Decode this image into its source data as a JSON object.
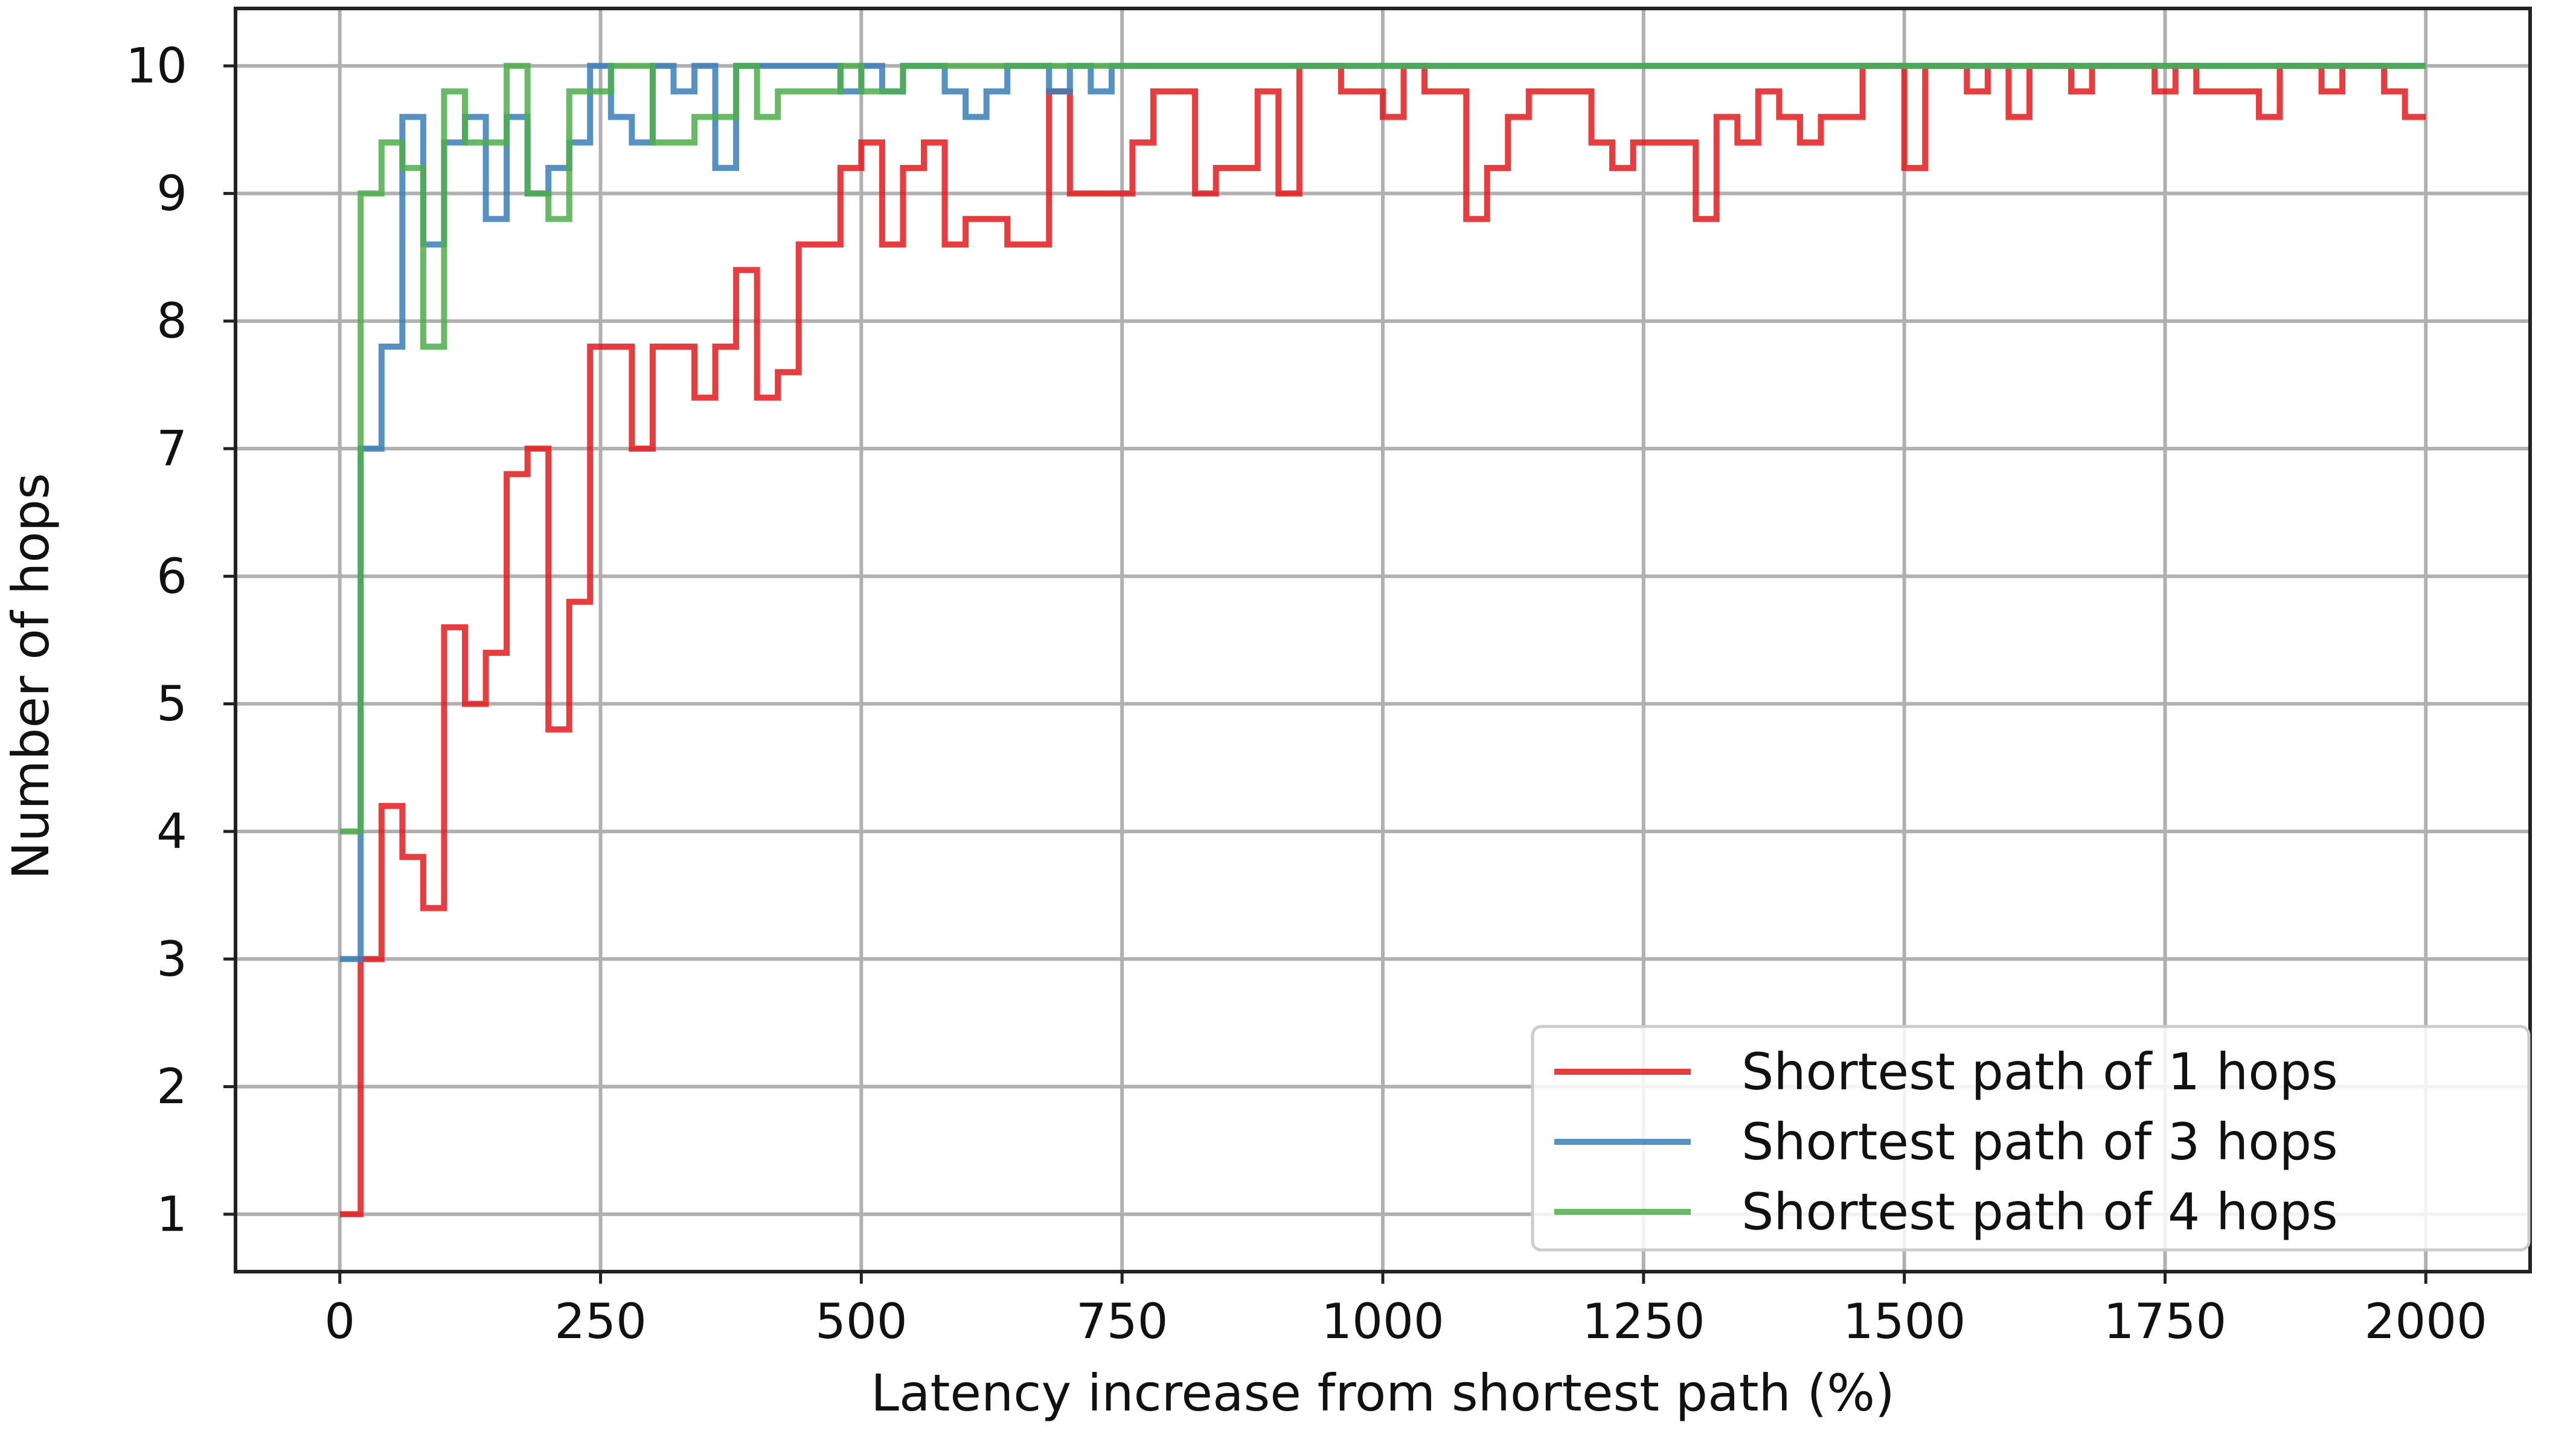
{
  "chart_data": {
    "type": "line",
    "step": "post",
    "title": "",
    "xlabel": "Latency increase from shortest path (%)",
    "ylabel": "Number of hops",
    "xlim": [
      -100,
      2100
    ],
    "ylim": [
      0.55,
      10.45
    ],
    "xticks": [
      0,
      250,
      500,
      750,
      1000,
      1250,
      1500,
      1750,
      2000
    ],
    "yticks": [
      1,
      2,
      3,
      4,
      5,
      6,
      7,
      8,
      9,
      10
    ],
    "xtick_labels": [
      "0",
      "250",
      "500",
      "750",
      "1000",
      "1250",
      "1500",
      "1750",
      "2000"
    ],
    "ytick_labels": [
      "1",
      "2",
      "3",
      "4",
      "5",
      "6",
      "7",
      "8",
      "9",
      "10"
    ],
    "grid": true,
    "legend_position": "lower-right",
    "series": [
      {
        "name": "Shortest path of 1 hops",
        "color": "#e41a1c",
        "points": [
          [
            0,
            1
          ],
          [
            20,
            3
          ],
          [
            40,
            4.2
          ],
          [
            60,
            3.8
          ],
          [
            80,
            3.4
          ],
          [
            100,
            5.6
          ],
          [
            120,
            5
          ],
          [
            140,
            5.4
          ],
          [
            160,
            6.8
          ],
          [
            180,
            7
          ],
          [
            200,
            4.8
          ],
          [
            220,
            5.8
          ],
          [
            240,
            7.8
          ],
          [
            260,
            7.8
          ],
          [
            280,
            7
          ],
          [
            300,
            7.8
          ],
          [
            320,
            7.8
          ],
          [
            340,
            7.4
          ],
          [
            360,
            7.8
          ],
          [
            380,
            8.4
          ],
          [
            400,
            7.4
          ],
          [
            420,
            7.6
          ],
          [
            440,
            8.6
          ],
          [
            460,
            8.6
          ],
          [
            480,
            9.2
          ],
          [
            500,
            9.4
          ],
          [
            520,
            8.6
          ],
          [
            540,
            9.2
          ],
          [
            560,
            9.4
          ],
          [
            580,
            8.6
          ],
          [
            600,
            8.8
          ],
          [
            620,
            8.8
          ],
          [
            640,
            8.6
          ],
          [
            660,
            8.6
          ],
          [
            680,
            9.8
          ],
          [
            700,
            9
          ],
          [
            720,
            9
          ],
          [
            740,
            9
          ],
          [
            760,
            9.4
          ],
          [
            780,
            9.8
          ],
          [
            800,
            9.8
          ],
          [
            820,
            9
          ],
          [
            840,
            9.2
          ],
          [
            860,
            9.2
          ],
          [
            880,
            9.8
          ],
          [
            900,
            9
          ],
          [
            920,
            10
          ],
          [
            940,
            10
          ],
          [
            960,
            9.8
          ],
          [
            980,
            9.8
          ],
          [
            1000,
            9.6
          ],
          [
            1020,
            10
          ],
          [
            1040,
            9.8
          ],
          [
            1060,
            9.8
          ],
          [
            1080,
            8.8
          ],
          [
            1100,
            9.2
          ],
          [
            1120,
            9.6
          ],
          [
            1140,
            9.8
          ],
          [
            1160,
            9.8
          ],
          [
            1180,
            9.8
          ],
          [
            1200,
            9.4
          ],
          [
            1220,
            9.2
          ],
          [
            1240,
            9.4
          ],
          [
            1260,
            9.4
          ],
          [
            1280,
            9.4
          ],
          [
            1300,
            8.8
          ],
          [
            1320,
            9.6
          ],
          [
            1340,
            9.4
          ],
          [
            1360,
            9.8
          ],
          [
            1380,
            9.6
          ],
          [
            1400,
            9.4
          ],
          [
            1420,
            9.6
          ],
          [
            1440,
            9.6
          ],
          [
            1460,
            10
          ],
          [
            1480,
            10
          ],
          [
            1500,
            9.2
          ],
          [
            1520,
            10
          ],
          [
            1540,
            10
          ],
          [
            1560,
            9.8
          ],
          [
            1580,
            10
          ],
          [
            1600,
            9.6
          ],
          [
            1620,
            10
          ],
          [
            1640,
            10
          ],
          [
            1660,
            9.8
          ],
          [
            1680,
            10
          ],
          [
            1700,
            10
          ],
          [
            1720,
            10
          ],
          [
            1740,
            9.8
          ],
          [
            1760,
            10
          ],
          [
            1780,
            9.8
          ],
          [
            1800,
            9.8
          ],
          [
            1820,
            9.8
          ],
          [
            1840,
            9.6
          ],
          [
            1860,
            10
          ],
          [
            1880,
            10
          ],
          [
            1900,
            9.8
          ],
          [
            1920,
            10
          ],
          [
            1940,
            10
          ],
          [
            1960,
            9.8
          ],
          [
            1980,
            9.6
          ],
          [
            2000,
            9.6
          ]
        ]
      },
      {
        "name": "Shortest path of 3 hops",
        "color": "#377eb8",
        "points": [
          [
            0,
            3
          ],
          [
            20,
            7
          ],
          [
            40,
            7.8
          ],
          [
            60,
            9.6
          ],
          [
            80,
            8.6
          ],
          [
            100,
            9.4
          ],
          [
            120,
            9.6
          ],
          [
            140,
            8.8
          ],
          [
            160,
            9.6
          ],
          [
            180,
            9
          ],
          [
            200,
            9.2
          ],
          [
            220,
            9.4
          ],
          [
            240,
            10
          ],
          [
            260,
            9.6
          ],
          [
            280,
            9.4
          ],
          [
            300,
            10
          ],
          [
            320,
            9.8
          ],
          [
            340,
            10
          ],
          [
            360,
            9.2
          ],
          [
            380,
            10
          ],
          [
            400,
            10
          ],
          [
            420,
            10
          ],
          [
            440,
            10
          ],
          [
            460,
            10
          ],
          [
            480,
            9.8
          ],
          [
            500,
            10
          ],
          [
            520,
            9.8
          ],
          [
            540,
            10
          ],
          [
            560,
            10
          ],
          [
            580,
            9.8
          ],
          [
            600,
            9.6
          ],
          [
            620,
            9.8
          ],
          [
            640,
            10
          ],
          [
            660,
            10
          ],
          [
            680,
            9.8
          ],
          [
            700,
            10
          ],
          [
            720,
            9.8
          ],
          [
            740,
            10
          ],
          [
            760,
            10
          ],
          [
            2000,
            10
          ]
        ]
      },
      {
        "name": "Shortest path of 4 hops",
        "color": "#4daf4a",
        "points": [
          [
            0,
            4
          ],
          [
            20,
            9
          ],
          [
            40,
            9.4
          ],
          [
            60,
            9.2
          ],
          [
            80,
            7.8
          ],
          [
            100,
            9.8
          ],
          [
            120,
            9.4
          ],
          [
            140,
            9.4
          ],
          [
            160,
            10
          ],
          [
            180,
            9
          ],
          [
            200,
            8.8
          ],
          [
            220,
            9.8
          ],
          [
            240,
            9.8
          ],
          [
            260,
            10
          ],
          [
            280,
            10
          ],
          [
            300,
            9.4
          ],
          [
            320,
            9.4
          ],
          [
            340,
            9.6
          ],
          [
            360,
            9.6
          ],
          [
            380,
            10
          ],
          [
            400,
            9.6
          ],
          [
            420,
            9.8
          ],
          [
            440,
            9.8
          ],
          [
            460,
            9.8
          ],
          [
            480,
            10
          ],
          [
            500,
            9.8
          ],
          [
            520,
            9.8
          ],
          [
            540,
            10
          ],
          [
            560,
            10
          ],
          [
            580,
            10
          ],
          [
            600,
            10
          ],
          [
            2000,
            10
          ]
        ]
      }
    ]
  }
}
